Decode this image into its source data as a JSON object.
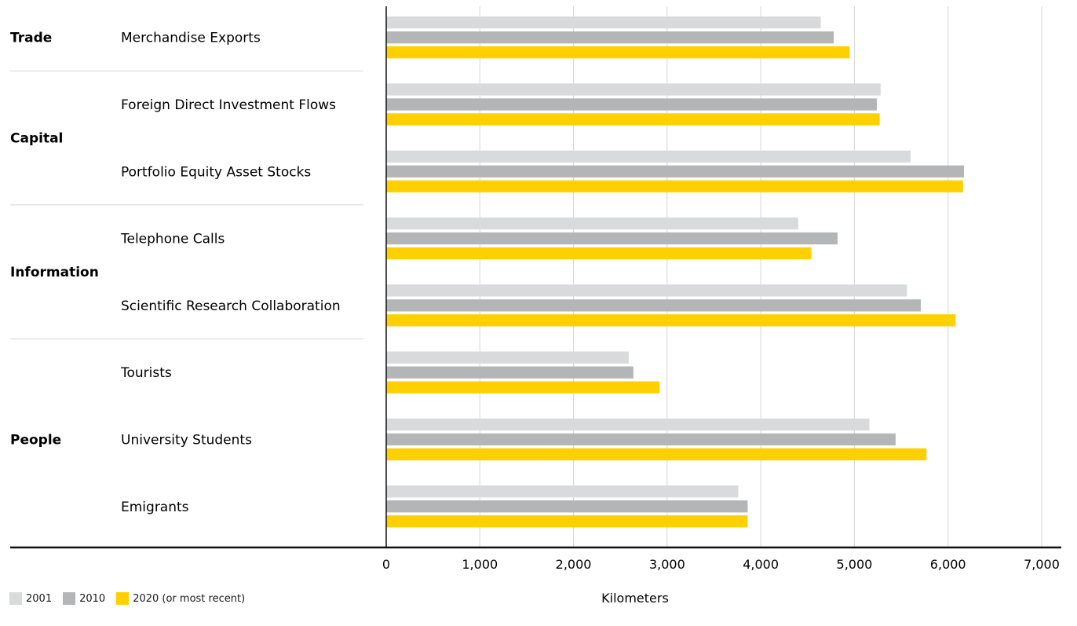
{
  "chart_data": {
    "type": "bar",
    "orientation": "horizontal",
    "xlabel": "Kilometers",
    "xlim": [
      0,
      7000
    ],
    "xticks": [
      0,
      1000,
      2000,
      3000,
      4000,
      5000,
      6000,
      7000
    ],
    "xtick_labels": [
      "0",
      "1,000",
      "2,000",
      "3,000",
      "4,000",
      "5,000",
      "6,000",
      "7,000"
    ],
    "grid": true,
    "legend_position": "bottom-left",
    "groups": [
      {
        "name": "Trade",
        "categories": [
          "Merchandise Exports"
        ]
      },
      {
        "name": "Capital",
        "categories": [
          "Foreign Direct Investment Flows",
          "Portfolio Equity Asset Stocks"
        ]
      },
      {
        "name": "Information",
        "categories": [
          "Telephone Calls",
          "Scientific Research Collaboration"
        ]
      },
      {
        "name": "People",
        "categories": [
          "Tourists",
          "University Students",
          "Emigrants"
        ]
      }
    ],
    "categories": [
      "Merchandise Exports",
      "Foreign Direct Investment Flows",
      "Portfolio Equity Asset Stocks",
      "Telephone Calls",
      "Scientific Research Collaboration",
      "Tourists",
      "University Students",
      "Emigrants"
    ],
    "series": [
      {
        "name": "2001",
        "color": "#d9dadb",
        "values": [
          4640,
          5280,
          5600,
          4400,
          5560,
          2590,
          5160,
          3760
        ]
      },
      {
        "name": "2010",
        "color": "#b4b5b6",
        "values": [
          4780,
          5240,
          6170,
          4820,
          5710,
          2640,
          5440,
          3860
        ]
      },
      {
        "name": "2020 (or most recent)",
        "color": "#ffd000",
        "values": [
          4950,
          5270,
          6160,
          4540,
          6080,
          2920,
          5770,
          3860
        ]
      }
    ]
  }
}
